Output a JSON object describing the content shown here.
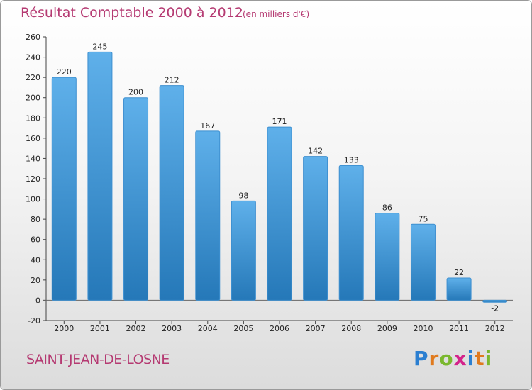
{
  "header": {
    "title": "Résultat Comptable 2000 à 2012",
    "subtitle": "(en milliers d'€)"
  },
  "footer": {
    "place": "SAINT-JEAN-DE-LOSNE",
    "logo_text": "Proxiti"
  },
  "colors": {
    "title": "#b53a72",
    "bar_top": "#5fb0ea",
    "bar_bottom": "#2578b8",
    "logo_letters": [
      "#2b7fd1",
      "#e07a1e",
      "#7ab82e",
      "#d4238a",
      "#2b7fd1",
      "#e07a1e",
      "#7ab82e"
    ]
  },
  "chart_data": {
    "type": "bar",
    "title": "Résultat Comptable 2000 à 2012",
    "subtitle": "(en milliers d'€)",
    "xlabel": "",
    "ylabel": "",
    "categories": [
      "2000",
      "2001",
      "2002",
      "2003",
      "2004",
      "2005",
      "2006",
      "2007",
      "2008",
      "2009",
      "2010",
      "2011",
      "2012"
    ],
    "values": [
      220,
      245,
      200,
      212,
      167,
      98,
      171,
      142,
      133,
      86,
      75,
      22,
      -2
    ],
    "value_labels": [
      "220",
      "245",
      "200",
      "212",
      "167",
      "98",
      "171",
      "142",
      "133",
      "86",
      "75",
      "22",
      "-2"
    ],
    "ylim": [
      -20,
      260
    ],
    "yticks": [
      -20,
      0,
      20,
      40,
      60,
      80,
      100,
      120,
      140,
      160,
      180,
      200,
      220,
      240,
      260
    ],
    "ytick_labels": [
      "-20",
      "0",
      "20",
      "40",
      "60",
      "80",
      "100",
      "120",
      "140",
      "160",
      "180",
      "200",
      "220",
      "240",
      "260"
    ],
    "grid": false,
    "legend": "none"
  }
}
